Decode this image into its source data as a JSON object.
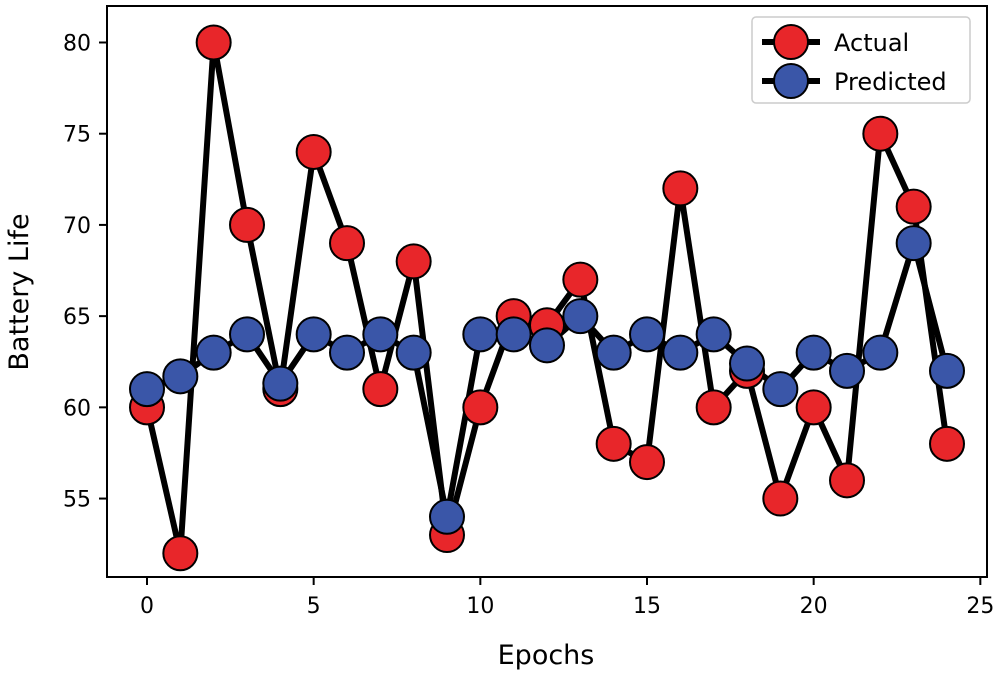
{
  "chart_data": {
    "type": "line",
    "title": "",
    "xlabel": "Epochs",
    "ylabel": "Battery Life",
    "xlim": [
      -1.2,
      25.2
    ],
    "ylim": [
      50.7,
      82.0
    ],
    "xticks": [
      0,
      5,
      10,
      15,
      20,
      25
    ],
    "yticks": [
      55,
      60,
      65,
      70,
      75,
      80
    ],
    "grid": false,
    "legend_position": "top-right",
    "x": [
      0,
      1,
      2,
      3,
      4,
      5,
      6,
      7,
      8,
      9,
      10,
      11,
      12,
      13,
      14,
      15,
      16,
      17,
      18,
      19,
      20,
      21,
      22,
      23,
      24
    ],
    "series": [
      {
        "name": "Actual",
        "color": "#e8262a",
        "line_color": "#000000",
        "values": [
          60,
          52,
          80,
          70,
          61,
          74,
          69,
          61,
          68,
          53,
          60,
          65,
          64.5,
          67,
          58,
          57,
          72,
          60,
          62,
          55,
          60,
          56,
          75,
          71,
          58
        ]
      },
      {
        "name": "Predicted",
        "color": "#3a56a8",
        "line_color": "#000000",
        "values": [
          61,
          61.7,
          63,
          64,
          61.3,
          64,
          63,
          64,
          63,
          54,
          64,
          64,
          63.4,
          65,
          63,
          64,
          63,
          64,
          62.4,
          61,
          63,
          62,
          63,
          69,
          62
        ]
      }
    ]
  }
}
